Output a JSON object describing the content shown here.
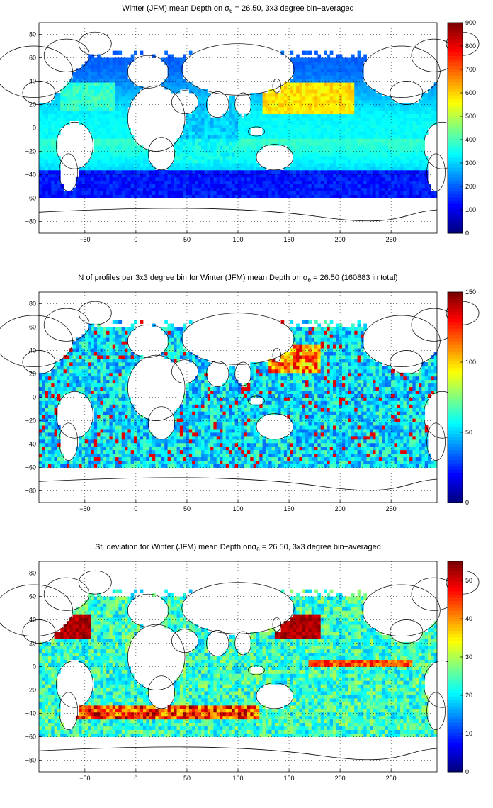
{
  "panels": [
    {
      "title_pre": "Winter (JFM) mean Depth on σ",
      "title_sub": "θ",
      "title_post": " = 26.50, 3x3 degree bin−averaged",
      "colorbar_ticks": [
        "0",
        "100",
        "200",
        "300",
        "400",
        "500",
        "600",
        "700",
        "800",
        "900"
      ]
    },
    {
      "title_pre": "N of profiles per 3x3 degree bin for Winter (JFM) mean Depth on σ",
      "title_sub": "θ",
      "title_post": " = 26.50 (160883 in total)",
      "colorbar_ticks": [
        "0",
        "50",
        "100",
        "150"
      ]
    },
    {
      "title_pre": "St. deviation for Winter (JFM) mean Depth onσ",
      "title_sub": "θ",
      "title_post": " = 26.50, 3x3 degree bin−averaged",
      "colorbar_ticks": [
        "0",
        "10",
        "20",
        "30",
        "40",
        "50"
      ]
    }
  ],
  "chart_data": [
    {
      "type": "heatmap",
      "title": "Winter (JFM) mean Depth on σθ = 26.50, 3x3 degree bin−averaged",
      "xlim": [
        -95,
        295
      ],
      "ylim": [
        -90,
        90
      ],
      "x_ticks": [
        -50,
        0,
        50,
        100,
        150,
        200,
        250
      ],
      "y_ticks": [
        -80,
        -60,
        -40,
        -20,
        0,
        20,
        40,
        60,
        80
      ],
      "colorbar": {
        "min": 0,
        "max": 900,
        "ticks": [
          0,
          100,
          200,
          300,
          400,
          500,
          600,
          700,
          800,
          900
        ]
      },
      "grid": true,
      "colormap": "jet",
      "bin_size_deg": 3
    },
    {
      "type": "heatmap",
      "title": "N of profiles per 3x3 degree bin for Winter (JFM) mean Depth on σθ = 26.50 (160883 in total)",
      "xlim": [
        -95,
        295
      ],
      "ylim": [
        -90,
        90
      ],
      "x_ticks": [
        -50,
        0,
        50,
        100,
        150,
        200,
        250
      ],
      "y_ticks": [
        -80,
        -60,
        -40,
        -20,
        0,
        20,
        40,
        60,
        80
      ],
      "colorbar": {
        "min": 0,
        "max": 150,
        "ticks": [
          0,
          50,
          100,
          150
        ]
      },
      "total_profiles": 160883,
      "grid": true,
      "colormap": "jet",
      "bin_size_deg": 3
    },
    {
      "type": "heatmap",
      "title": "St. deviation for Winter (JFM) mean Depth onσθ = 26.50, 3x3 degree bin−averaged",
      "xlim": [
        -95,
        295
      ],
      "ylim": [
        -90,
        90
      ],
      "x_ticks": [
        -50,
        0,
        50,
        100,
        150,
        200,
        250
      ],
      "y_ticks": [
        -80,
        -60,
        -40,
        -20,
        0,
        20,
        40,
        60,
        80
      ],
      "colorbar": {
        "min": 0,
        "max": 55,
        "ticks": [
          0,
          10,
          20,
          30,
          40,
          50
        ]
      },
      "grid": true,
      "colormap": "jet",
      "bin_size_deg": 3
    }
  ]
}
